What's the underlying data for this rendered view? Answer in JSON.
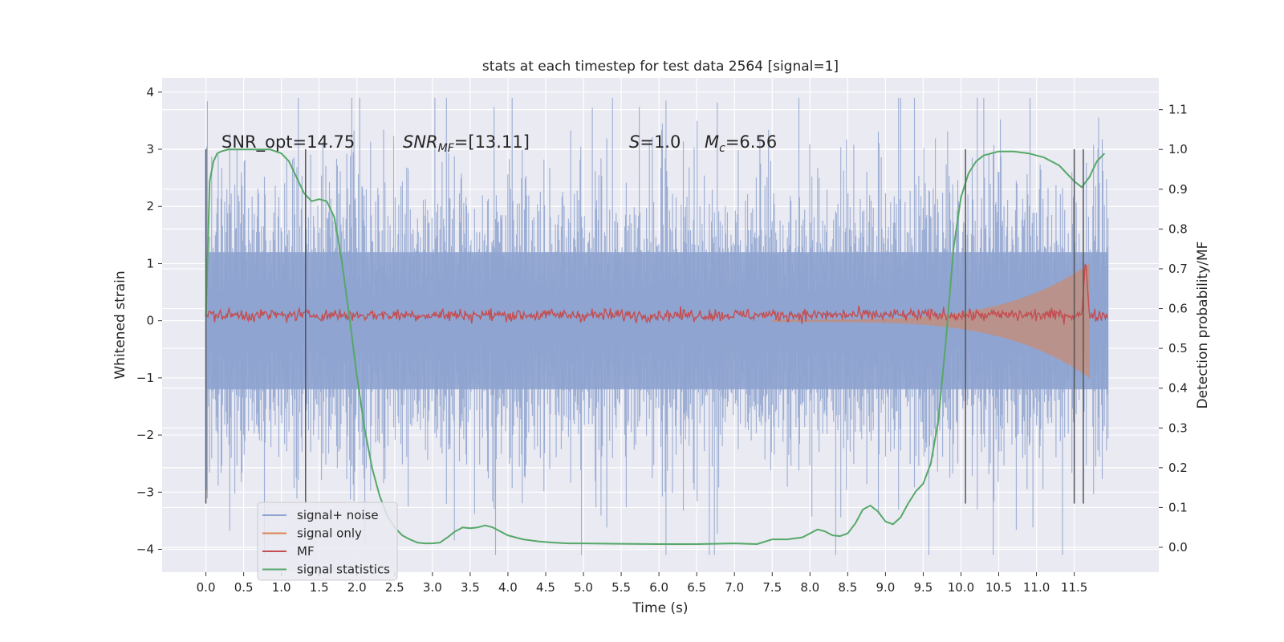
{
  "chart_data": {
    "type": "line",
    "title": "stats at each timestep for test data 2564 [signal=1]",
    "xlabel": "Time (s)",
    "ylabel": "Whitened strain",
    "y2label": "Detection probability/MF",
    "xlim": [
      -0.58,
      12.62
    ],
    "ylim": [
      -4.4,
      4.25
    ],
    "y2lim": [
      -0.0625,
      1.18
    ],
    "x_ticks": [
      "0.0",
      "0.5",
      "1.0",
      "1.5",
      "2.0",
      "2.5",
      "3.0",
      "3.5",
      "4.0",
      "4.5",
      "5.0",
      "5.5",
      "6.0",
      "6.5",
      "7.0",
      "7.5",
      "8.0",
      "8.5",
      "9.0",
      "9.5",
      "10.0",
      "10.5",
      "11.0",
      "11.5"
    ],
    "y_ticks": [
      "4",
      "3",
      "2",
      "1",
      "0",
      "−1",
      "−2",
      "−3",
      "−4"
    ],
    "y2_ticks": [
      "1.1",
      "1.0",
      "0.9",
      "0.8",
      "0.7",
      "0.6",
      "0.5",
      "0.4",
      "0.3",
      "0.2",
      "0.1",
      "0.0"
    ],
    "grid": true,
    "legend_position": "lower-left",
    "annotations": {
      "snr_opt": "SNR_opt=14.75",
      "snr_mf_label": "SNR",
      "snr_mf_sub": "MF",
      "snr_mf_value": "=[13.11]",
      "s_label": "S",
      "s_value": "=1.0",
      "mc_label": "M",
      "mc_sub": "c",
      "mc_value": "=6.56"
    },
    "vertical_markers": [
      0.0,
      1.32,
      10.06,
      11.5,
      11.62
    ],
    "series": [
      {
        "name": "signal+ noise",
        "axis": "left",
        "color": "#8ea3cf",
        "envelope": {
          "x_start": 0.0,
          "x_end": 11.95,
          "core_abs": 1.2,
          "peak_max": 3.9,
          "peak_min": -4.1
        }
      },
      {
        "name": "signal only",
        "axis": "left",
        "color": "#dd8452",
        "chirp": {
          "x_start": 7.5,
          "x_end": 11.7,
          "amp_start": 0.02,
          "amp_end": 1.0
        }
      },
      {
        "name": "MF",
        "axis": "left",
        "color": "#c44e52",
        "level": 0.1,
        "noise_abs": 0.12,
        "peak": {
          "x": 11.65,
          "y": 1.0
        }
      },
      {
        "name": "signal statistics",
        "axis": "right",
        "color": "#55a868",
        "x": [
          0.0,
          0.05,
          0.1,
          0.15,
          0.2,
          0.3,
          0.5,
          0.7,
          0.85,
          1.0,
          1.1,
          1.2,
          1.3,
          1.4,
          1.5,
          1.6,
          1.7,
          1.8,
          1.9,
          2.0,
          2.1,
          2.2,
          2.3,
          2.4,
          2.5,
          2.6,
          2.7,
          2.8,
          2.9,
          3.0,
          3.1,
          3.2,
          3.3,
          3.4,
          3.5,
          3.6,
          3.7,
          3.8,
          3.9,
          4.0,
          4.2,
          4.4,
          4.6,
          4.8,
          5.0,
          5.5,
          6.0,
          6.5,
          7.0,
          7.3,
          7.5,
          7.7,
          7.9,
          8.0,
          8.1,
          8.2,
          8.3,
          8.4,
          8.5,
          8.6,
          8.7,
          8.8,
          8.9,
          9.0,
          9.1,
          9.2,
          9.3,
          9.4,
          9.5,
          9.6,
          9.7,
          9.8,
          9.9,
          10.0,
          10.1,
          10.2,
          10.3,
          10.4,
          10.5,
          10.7,
          10.9,
          11.1,
          11.3,
          11.4,
          11.5,
          11.6,
          11.7,
          11.8,
          11.9
        ],
        "y": [
          0.58,
          0.92,
          0.97,
          0.99,
          0.995,
          1.0,
          1.0,
          1.0,
          1.0,
          0.99,
          0.97,
          0.93,
          0.89,
          0.87,
          0.875,
          0.87,
          0.83,
          0.72,
          0.58,
          0.43,
          0.3,
          0.2,
          0.13,
          0.08,
          0.05,
          0.03,
          0.02,
          0.012,
          0.01,
          0.01,
          0.012,
          0.025,
          0.04,
          0.05,
          0.048,
          0.05,
          0.055,
          0.05,
          0.04,
          0.03,
          0.02,
          0.015,
          0.012,
          0.01,
          0.01,
          0.009,
          0.008,
          0.008,
          0.01,
          0.008,
          0.02,
          0.02,
          0.025,
          0.035,
          0.045,
          0.04,
          0.03,
          0.028,
          0.035,
          0.06,
          0.095,
          0.105,
          0.09,
          0.065,
          0.058,
          0.075,
          0.11,
          0.14,
          0.16,
          0.21,
          0.32,
          0.52,
          0.75,
          0.88,
          0.94,
          0.97,
          0.985,
          0.99,
          0.995,
          0.995,
          0.99,
          0.98,
          0.96,
          0.94,
          0.92,
          0.905,
          0.93,
          0.97,
          0.99
        ]
      }
    ]
  }
}
